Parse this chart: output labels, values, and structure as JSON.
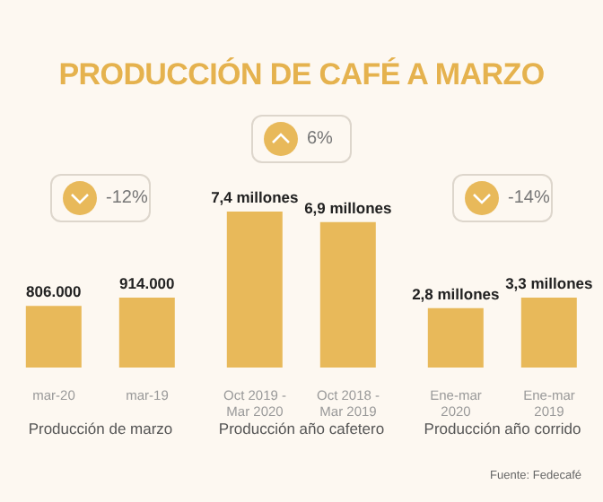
{
  "chart_data": [
    {
      "type": "bar",
      "title": "PRODUCCIÓN DE CAFÉ A MARZO",
      "categories": [
        "mar-20",
        "mar-19"
      ],
      "values": [
        806000,
        914000
      ],
      "value_labels": [
        "806.000",
        "914.000"
      ],
      "color": "#e8b95a",
      "xlabel": "Producción de marzo",
      "annotations": [
        "-12%"
      ]
    },
    {
      "type": "bar",
      "categories": [
        "Oct 2019 - Mar 2020",
        "Oct 2018 - Mar 2019"
      ],
      "values": [
        7.4,
        6.9
      ],
      "value_labels": [
        "7,4 millones",
        "6,9 millones"
      ],
      "color": "#e8b95a",
      "xlabel": "Producción año cafetero",
      "annotations": [
        "6%"
      ]
    },
    {
      "type": "bar",
      "categories": [
        "Ene-mar 2020",
        "Ene-mar 2019"
      ],
      "values": [
        2.8,
        3.3
      ],
      "value_labels": [
        "2,8 millones",
        "3,3 millones"
      ],
      "color": "#e8b95a",
      "xlabel": "Producción año corrido",
      "annotations": [
        "-14%",
        "Fuente: Fedecafé"
      ]
    }
  ]
}
